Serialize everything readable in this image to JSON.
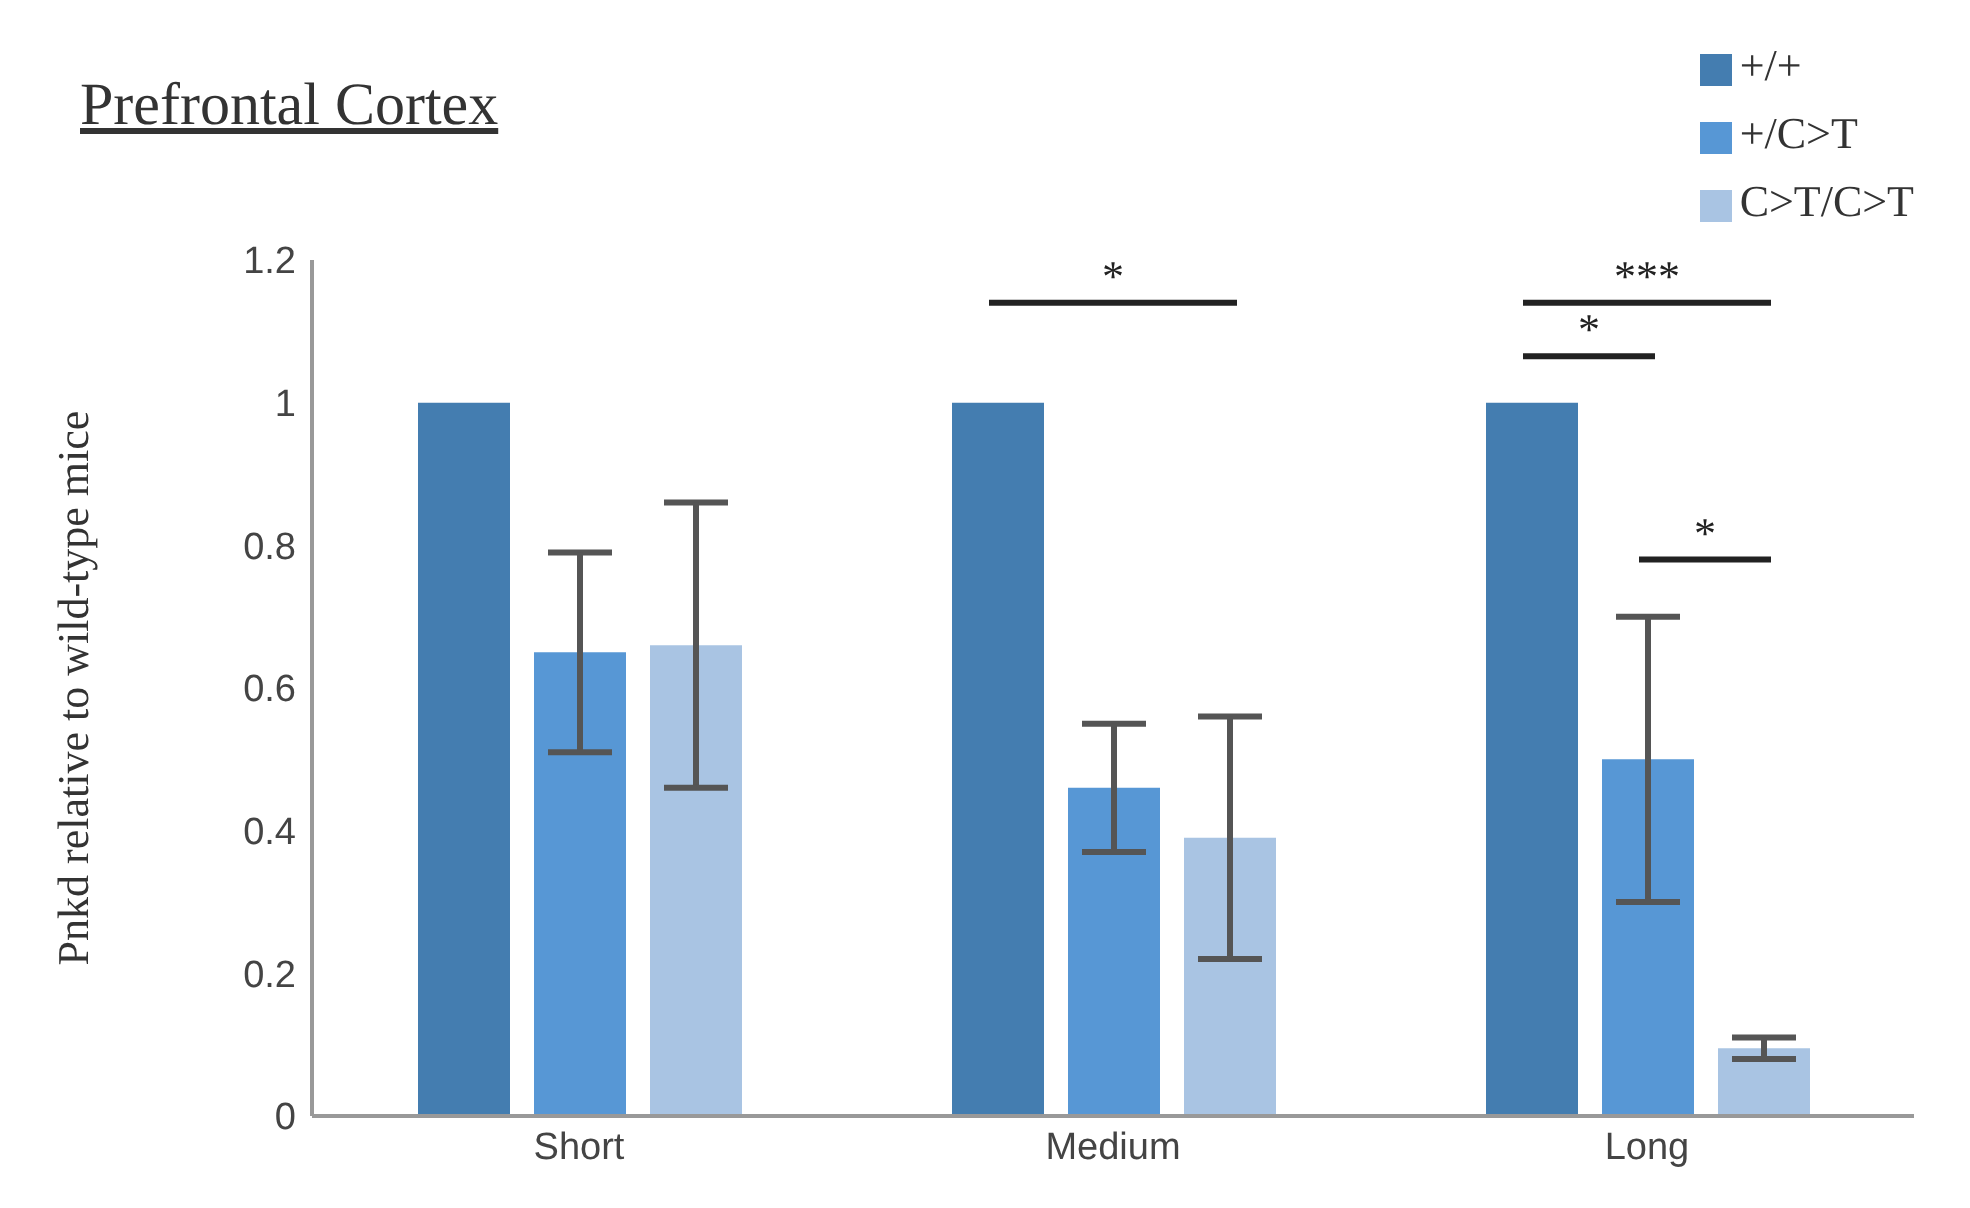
{
  "chart_data": {
    "type": "bar",
    "title": "Prefrontal Cortex",
    "ylabel": "Pnkd relative to wild-type mice",
    "categories": [
      "Short",
      "Medium",
      "Long"
    ],
    "series": [
      {
        "name": "+/+",
        "color": "#447db0",
        "values": [
          1,
          1,
          1
        ]
      },
      {
        "name": "+/C>T",
        "color": "#5797d5",
        "values": [
          0.65,
          0.46,
          0.5
        ],
        "errors": [
          0.14,
          0.09,
          0.2
        ]
      },
      {
        "name": "C>T/C>T",
        "color": "#a9c4e3",
        "values": [
          0.66,
          0.39,
          0.095
        ],
        "errors": [
          0.2,
          0.17,
          0.015
        ]
      }
    ],
    "ylim": [
      0,
      1.2
    ],
    "yticks": [
      0,
      0.2,
      0.4,
      0.6,
      0.8,
      1,
      1.2
    ],
    "legend": "top right",
    "annotations": [
      "*",
      "***",
      "*",
      "*"
    ]
  }
}
